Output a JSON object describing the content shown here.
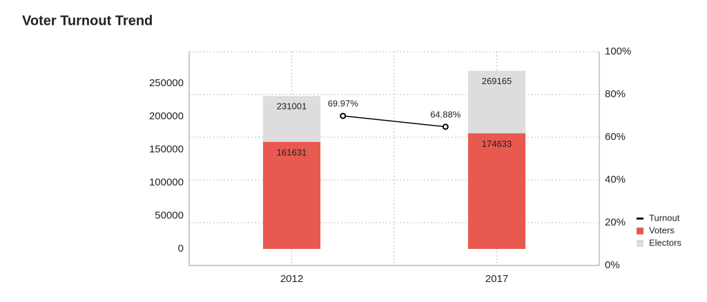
{
  "chart_data": {
    "type": "bar",
    "title": "Voter Turnout Trend",
    "categories": [
      "2012",
      "2017"
    ],
    "series": [
      {
        "name": "Turnout",
        "type": "line",
        "axis": "y2",
        "color": "#000000",
        "values": [
          69.97,
          64.88
        ],
        "value_labels": [
          "69.97%",
          "64.88%"
        ]
      },
      {
        "name": "Voters",
        "type": "bar",
        "color": "#e8594f",
        "values": [
          161631,
          174633
        ]
      },
      {
        "name": "Electors",
        "type": "bar",
        "color": "#dddddd",
        "values": [
          231001,
          269165
        ]
      }
    ],
    "ylim": [
      -25000,
      298000
    ],
    "yticks": [
      0,
      50000,
      100000,
      150000,
      200000,
      250000
    ],
    "y2lim": [
      0,
      100
    ],
    "y2ticks": [
      {
        "value": 0,
        "label": "0%"
      },
      {
        "value": 20,
        "label": "20%"
      },
      {
        "value": 40,
        "label": "40%"
      },
      {
        "value": 60,
        "label": "60%"
      },
      {
        "value": 80,
        "label": "80%"
      },
      {
        "value": 100,
        "label": "100%"
      }
    ],
    "grid": true,
    "legend": "bottom-right"
  }
}
